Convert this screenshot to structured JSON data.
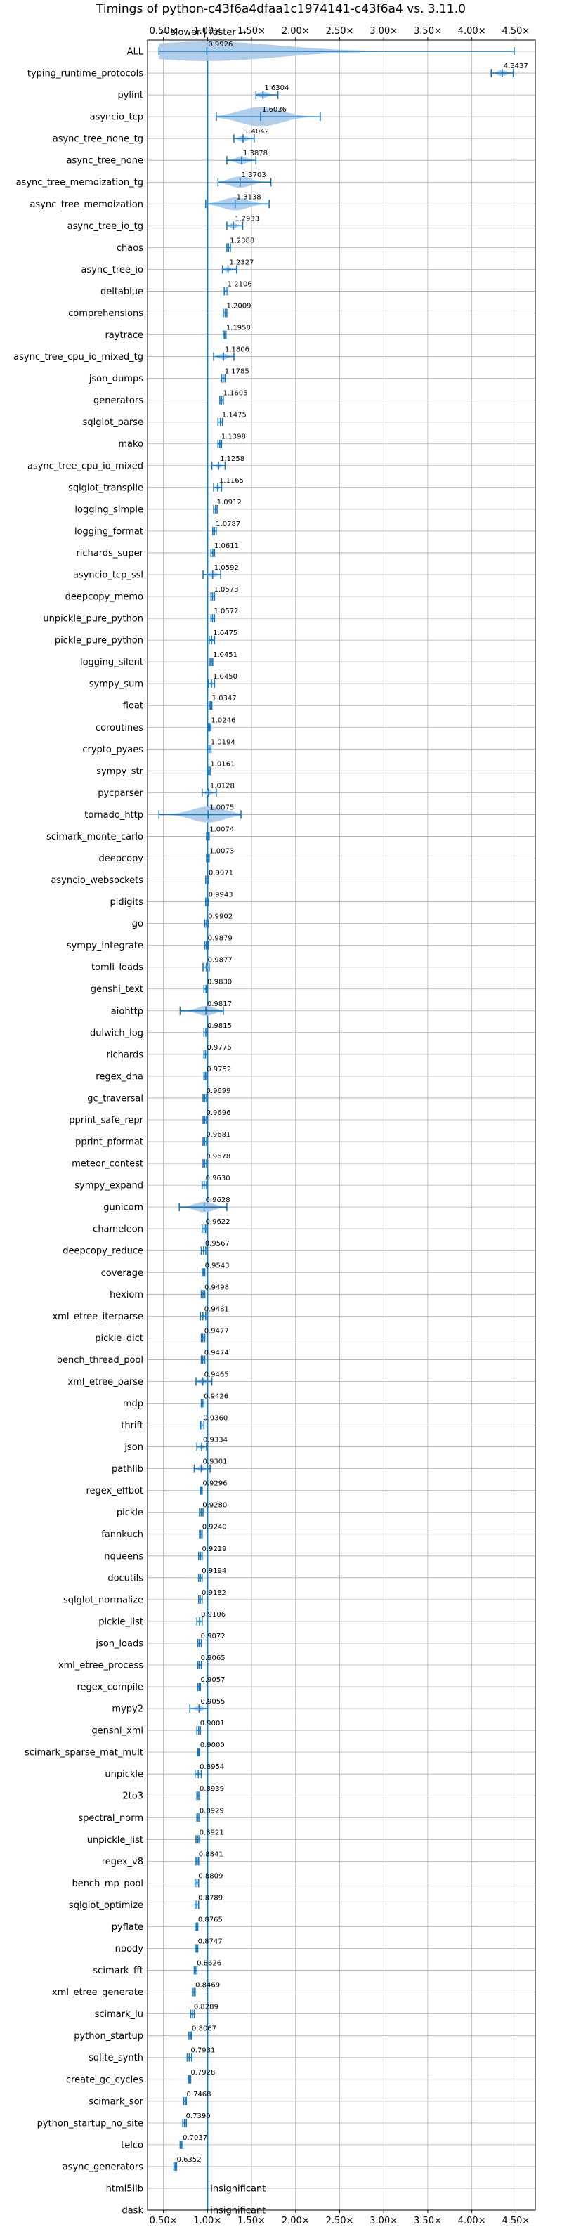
{
  "chart_data": {
    "type": "violin",
    "title": "Timings of python-c43f6a4dfaa1c1974141-c43f6a4 vs. 3.11.0",
    "direction_annotation": "← slower | faster →",
    "xlim": [
      0.32,
      4.72
    ],
    "x_ticks": [
      0.5,
      1.0,
      1.5,
      2.0,
      2.5,
      3.0,
      3.5,
      4.0,
      4.5
    ],
    "x_tick_labels": [
      "0.50×",
      "1.00×",
      "1.50×",
      "2.00×",
      "2.50×",
      "3.00×",
      "3.50×",
      "4.00×",
      "4.50×"
    ],
    "reference_line": 1.0,
    "grid": true,
    "insignificant_label": "insignificant",
    "benchmarks": [
      {
        "name": "ALL",
        "value": 0.9926,
        "label": "0.9926",
        "lo": 0.45,
        "hi": 4.48
      },
      {
        "name": "typing_runtime_protocols",
        "value": 4.3437,
        "label": "4.3437",
        "lo": 4.22,
        "hi": 4.47
      },
      {
        "name": "pylint",
        "value": 1.6304,
        "label": "1.6304",
        "lo": 1.55,
        "hi": 1.8
      },
      {
        "name": "asyncio_tcp",
        "value": 1.6036,
        "label": "1.6036",
        "lo": 1.1,
        "hi": 2.28
      },
      {
        "name": "async_tree_none_tg",
        "value": 1.4042,
        "label": "1.4042",
        "lo": 1.3,
        "hi": 1.53
      },
      {
        "name": "async_tree_none",
        "value": 1.3878,
        "label": "1.3878",
        "lo": 1.22,
        "hi": 1.55
      },
      {
        "name": "async_tree_memoization_tg",
        "value": 1.3703,
        "label": "1.3703",
        "lo": 1.12,
        "hi": 1.72
      },
      {
        "name": "async_tree_memoization",
        "value": 1.3138,
        "label": "1.3138",
        "lo": 0.98,
        "hi": 1.7
      },
      {
        "name": "async_tree_io_tg",
        "value": 1.2933,
        "label": "1.2933",
        "lo": 1.22,
        "hi": 1.4
      },
      {
        "name": "chaos",
        "value": 1.2388,
        "label": "1.2388",
        "lo": 1.22,
        "hi": 1.26
      },
      {
        "name": "async_tree_io",
        "value": 1.2327,
        "label": "1.2327",
        "lo": 1.17,
        "hi": 1.33
      },
      {
        "name": "deltablue",
        "value": 1.2106,
        "label": "1.2106",
        "lo": 1.19,
        "hi": 1.23
      },
      {
        "name": "comprehensions",
        "value": 1.2009,
        "label": "1.2009",
        "lo": 1.18,
        "hi": 1.22
      },
      {
        "name": "raytrace",
        "value": 1.1958,
        "label": "1.1958",
        "lo": 1.18,
        "hi": 1.21
      },
      {
        "name": "async_tree_cpu_io_mixed_tg",
        "value": 1.1806,
        "label": "1.1806",
        "lo": 1.07,
        "hi": 1.3
      },
      {
        "name": "json_dumps",
        "value": 1.1785,
        "label": "1.1785",
        "lo": 1.16,
        "hi": 1.2
      },
      {
        "name": "generators",
        "value": 1.1605,
        "label": "1.1605",
        "lo": 1.14,
        "hi": 1.18
      },
      {
        "name": "sqlglot_parse",
        "value": 1.1475,
        "label": "1.1475",
        "lo": 1.12,
        "hi": 1.17
      },
      {
        "name": "mako",
        "value": 1.1398,
        "label": "1.1398",
        "lo": 1.12,
        "hi": 1.16
      },
      {
        "name": "async_tree_cpu_io_mixed",
        "value": 1.1258,
        "label": "1.1258",
        "lo": 1.05,
        "hi": 1.2
      },
      {
        "name": "sqlglot_transpile",
        "value": 1.1165,
        "label": "1.1165",
        "lo": 1.07,
        "hi": 1.16
      },
      {
        "name": "logging_simple",
        "value": 1.0912,
        "label": "1.0912",
        "lo": 1.07,
        "hi": 1.11
      },
      {
        "name": "logging_format",
        "value": 1.0787,
        "label": "1.0787",
        "lo": 1.06,
        "hi": 1.1
      },
      {
        "name": "richards_super",
        "value": 1.0611,
        "label": "1.0611",
        "lo": 1.04,
        "hi": 1.08
      },
      {
        "name": "asyncio_tcp_ssl",
        "value": 1.0592,
        "label": "1.0592",
        "lo": 0.95,
        "hi": 1.15
      },
      {
        "name": "deepcopy_memo",
        "value": 1.0573,
        "label": "1.0573",
        "lo": 1.04,
        "hi": 1.08
      },
      {
        "name": "unpickle_pure_python",
        "value": 1.0572,
        "label": "1.0572",
        "lo": 1.04,
        "hi": 1.08
      },
      {
        "name": "pickle_pure_python",
        "value": 1.0475,
        "label": "1.0475",
        "lo": 1.02,
        "hi": 1.08
      },
      {
        "name": "logging_silent",
        "value": 1.0451,
        "label": "1.0451",
        "lo": 1.03,
        "hi": 1.06
      },
      {
        "name": "sympy_sum",
        "value": 1.045,
        "label": "1.0450",
        "lo": 1.01,
        "hi": 1.08
      },
      {
        "name": "float",
        "value": 1.0347,
        "label": "1.0347",
        "lo": 1.02,
        "hi": 1.05
      },
      {
        "name": "coroutines",
        "value": 1.0246,
        "label": "1.0246",
        "lo": 1.01,
        "hi": 1.04
      },
      {
        "name": "crypto_pyaes",
        "value": 1.0194,
        "label": "1.0194",
        "lo": 1.0,
        "hi": 1.04
      },
      {
        "name": "sympy_str",
        "value": 1.0161,
        "label": "1.0161",
        "lo": 1.0,
        "hi": 1.03
      },
      {
        "name": "pycparser",
        "value": 1.0128,
        "label": "1.0128",
        "lo": 0.94,
        "hi": 1.1
      },
      {
        "name": "tornado_http",
        "value": 1.0075,
        "label": "1.0075",
        "lo": 0.45,
        "hi": 1.38
      },
      {
        "name": "scimark_monte_carlo",
        "value": 1.0074,
        "label": "1.0074",
        "lo": 0.99,
        "hi": 1.02
      },
      {
        "name": "deepcopy",
        "value": 1.0073,
        "label": "1.0073",
        "lo": 0.99,
        "hi": 1.02
      },
      {
        "name": "asyncio_websockets",
        "value": 0.9971,
        "label": "0.9971",
        "lo": 0.98,
        "hi": 1.01
      },
      {
        "name": "pidigits",
        "value": 0.9943,
        "label": "0.9943",
        "lo": 0.98,
        "hi": 1.01
      },
      {
        "name": "go",
        "value": 0.9902,
        "label": "0.9902",
        "lo": 0.97,
        "hi": 1.01
      },
      {
        "name": "sympy_integrate",
        "value": 0.9879,
        "label": "0.9879",
        "lo": 0.97,
        "hi": 1.01
      },
      {
        "name": "tomli_loads",
        "value": 0.9877,
        "label": "0.9877",
        "lo": 0.95,
        "hi": 1.02
      },
      {
        "name": "genshi_text",
        "value": 0.983,
        "label": "0.9830",
        "lo": 0.96,
        "hi": 1.0
      },
      {
        "name": "aiohttp",
        "value": 0.9817,
        "label": "0.9817",
        "lo": 0.69,
        "hi": 1.18
      },
      {
        "name": "dulwich_log",
        "value": 0.9815,
        "label": "0.9815",
        "lo": 0.96,
        "hi": 1.0
      },
      {
        "name": "richards",
        "value": 0.9776,
        "label": "0.9776",
        "lo": 0.96,
        "hi": 1.0
      },
      {
        "name": "regex_dna",
        "value": 0.9752,
        "label": "0.9752",
        "lo": 0.96,
        "hi": 0.99
      },
      {
        "name": "gc_traversal",
        "value": 0.9699,
        "label": "0.9699",
        "lo": 0.95,
        "hi": 0.99
      },
      {
        "name": "pprint_safe_repr",
        "value": 0.9696,
        "label": "0.9696",
        "lo": 0.95,
        "hi": 0.99
      },
      {
        "name": "pprint_pformat",
        "value": 0.9681,
        "label": "0.9681",
        "lo": 0.95,
        "hi": 0.99
      },
      {
        "name": "meteor_contest",
        "value": 0.9678,
        "label": "0.9678",
        "lo": 0.95,
        "hi": 0.99
      },
      {
        "name": "sympy_expand",
        "value": 0.963,
        "label": "0.9630",
        "lo": 0.94,
        "hi": 0.99
      },
      {
        "name": "gunicorn",
        "value": 0.9628,
        "label": "0.9628",
        "lo": 0.68,
        "hi": 1.22
      },
      {
        "name": "chameleon",
        "value": 0.9622,
        "label": "0.9622",
        "lo": 0.94,
        "hi": 0.98
      },
      {
        "name": "deepcopy_reduce",
        "value": 0.9567,
        "label": "0.9567",
        "lo": 0.93,
        "hi": 0.98
      },
      {
        "name": "coverage",
        "value": 0.9543,
        "label": "0.9543",
        "lo": 0.94,
        "hi": 0.97
      },
      {
        "name": "hexiom",
        "value": 0.9498,
        "label": "0.9498",
        "lo": 0.93,
        "hi": 0.97
      },
      {
        "name": "xml_etree_iterparse",
        "value": 0.9481,
        "label": "0.9481",
        "lo": 0.92,
        "hi": 0.98
      },
      {
        "name": "pickle_dict",
        "value": 0.9477,
        "label": "0.9477",
        "lo": 0.93,
        "hi": 0.97
      },
      {
        "name": "bench_thread_pool",
        "value": 0.9474,
        "label": "0.9474",
        "lo": 0.93,
        "hi": 0.97
      },
      {
        "name": "xml_etree_parse",
        "value": 0.9465,
        "label": "0.9465",
        "lo": 0.87,
        "hi": 1.05
      },
      {
        "name": "mdp",
        "value": 0.9426,
        "label": "0.9426",
        "lo": 0.93,
        "hi": 0.96
      },
      {
        "name": "thrift",
        "value": 0.936,
        "label": "0.9360",
        "lo": 0.92,
        "hi": 0.96
      },
      {
        "name": "json",
        "value": 0.9334,
        "label": "0.9334",
        "lo": 0.88,
        "hi": 0.99
      },
      {
        "name": "pathlib",
        "value": 0.9301,
        "label": "0.9301",
        "lo": 0.85,
        "hi": 1.03
      },
      {
        "name": "regex_effbot",
        "value": 0.9296,
        "label": "0.9296",
        "lo": 0.92,
        "hi": 0.94
      },
      {
        "name": "pickle",
        "value": 0.928,
        "label": "0.9280",
        "lo": 0.91,
        "hi": 0.95
      },
      {
        "name": "fannkuch",
        "value": 0.924,
        "label": "0.9240",
        "lo": 0.91,
        "hi": 0.94
      },
      {
        "name": "nqueens",
        "value": 0.9219,
        "label": "0.9219",
        "lo": 0.9,
        "hi": 0.94
      },
      {
        "name": "docutils",
        "value": 0.9194,
        "label": "0.9194",
        "lo": 0.9,
        "hi": 0.94
      },
      {
        "name": "sqlglot_normalize",
        "value": 0.9182,
        "label": "0.9182",
        "lo": 0.9,
        "hi": 0.94
      },
      {
        "name": "pickle_list",
        "value": 0.9106,
        "label": "0.9106",
        "lo": 0.88,
        "hi": 0.94
      },
      {
        "name": "json_loads",
        "value": 0.9072,
        "label": "0.9072",
        "lo": 0.89,
        "hi": 0.93
      },
      {
        "name": "xml_etree_process",
        "value": 0.9065,
        "label": "0.9065",
        "lo": 0.89,
        "hi": 0.93
      },
      {
        "name": "regex_compile",
        "value": 0.9057,
        "label": "0.9057",
        "lo": 0.89,
        "hi": 0.92
      },
      {
        "name": "mypy2",
        "value": 0.9055,
        "label": "0.9055",
        "lo": 0.8,
        "hi": 1.0
      },
      {
        "name": "genshi_xml",
        "value": 0.9001,
        "label": "0.9001",
        "lo": 0.88,
        "hi": 0.92
      },
      {
        "name": "scimark_sparse_mat_mult",
        "value": 0.9,
        "label": "0.9000",
        "lo": 0.89,
        "hi": 0.91
      },
      {
        "name": "unpickle",
        "value": 0.8954,
        "label": "0.8954",
        "lo": 0.86,
        "hi": 0.93
      },
      {
        "name": "2to3",
        "value": 0.8939,
        "label": "0.8939",
        "lo": 0.88,
        "hi": 0.91
      },
      {
        "name": "spectral_norm",
        "value": 0.8929,
        "label": "0.8929",
        "lo": 0.88,
        "hi": 0.91
      },
      {
        "name": "unpickle_list",
        "value": 0.8921,
        "label": "0.8921",
        "lo": 0.87,
        "hi": 0.91
      },
      {
        "name": "regex_v8",
        "value": 0.8841,
        "label": "0.8841",
        "lo": 0.87,
        "hi": 0.9
      },
      {
        "name": "bench_mp_pool",
        "value": 0.8809,
        "label": "0.8809",
        "lo": 0.86,
        "hi": 0.9
      },
      {
        "name": "sqlglot_optimize",
        "value": 0.8789,
        "label": "0.8789",
        "lo": 0.86,
        "hi": 0.9
      },
      {
        "name": "pyflate",
        "value": 0.8765,
        "label": "0.8765",
        "lo": 0.86,
        "hi": 0.89
      },
      {
        "name": "nbody",
        "value": 0.8747,
        "label": "0.8747",
        "lo": 0.86,
        "hi": 0.89
      },
      {
        "name": "scimark_fft",
        "value": 0.8626,
        "label": "0.8626",
        "lo": 0.85,
        "hi": 0.88
      },
      {
        "name": "xml_etree_generate",
        "value": 0.8469,
        "label": "0.8469",
        "lo": 0.83,
        "hi": 0.86
      },
      {
        "name": "scimark_lu",
        "value": 0.8289,
        "label": "0.8289",
        "lo": 0.81,
        "hi": 0.85
      },
      {
        "name": "python_startup",
        "value": 0.8067,
        "label": "0.8067",
        "lo": 0.79,
        "hi": 0.82
      },
      {
        "name": "sqlite_synth",
        "value": 0.7931,
        "label": "0.7931",
        "lo": 0.77,
        "hi": 0.82
      },
      {
        "name": "create_gc_cycles",
        "value": 0.7928,
        "label": "0.7928",
        "lo": 0.78,
        "hi": 0.81
      },
      {
        "name": "scimark_sor",
        "value": 0.7468,
        "label": "0.7468",
        "lo": 0.73,
        "hi": 0.76
      },
      {
        "name": "python_startup_no_site",
        "value": 0.739,
        "label": "0.7390",
        "lo": 0.72,
        "hi": 0.76
      },
      {
        "name": "telco",
        "value": 0.7037,
        "label": "0.7037",
        "lo": 0.69,
        "hi": 0.72
      },
      {
        "name": "async_generators",
        "value": 0.6352,
        "label": "0.6352",
        "lo": 0.62,
        "hi": 0.65
      },
      {
        "name": "html5lib",
        "value": null,
        "label": "insignificant",
        "lo": null,
        "hi": null
      },
      {
        "name": "dask",
        "value": null,
        "label": "insignificant",
        "lo": null,
        "hi": null
      }
    ]
  },
  "colors": {
    "violin_fill": "#a9c9e8",
    "line": "#1f77b4",
    "grid": "#b0b0b0",
    "frame": "#000000"
  }
}
